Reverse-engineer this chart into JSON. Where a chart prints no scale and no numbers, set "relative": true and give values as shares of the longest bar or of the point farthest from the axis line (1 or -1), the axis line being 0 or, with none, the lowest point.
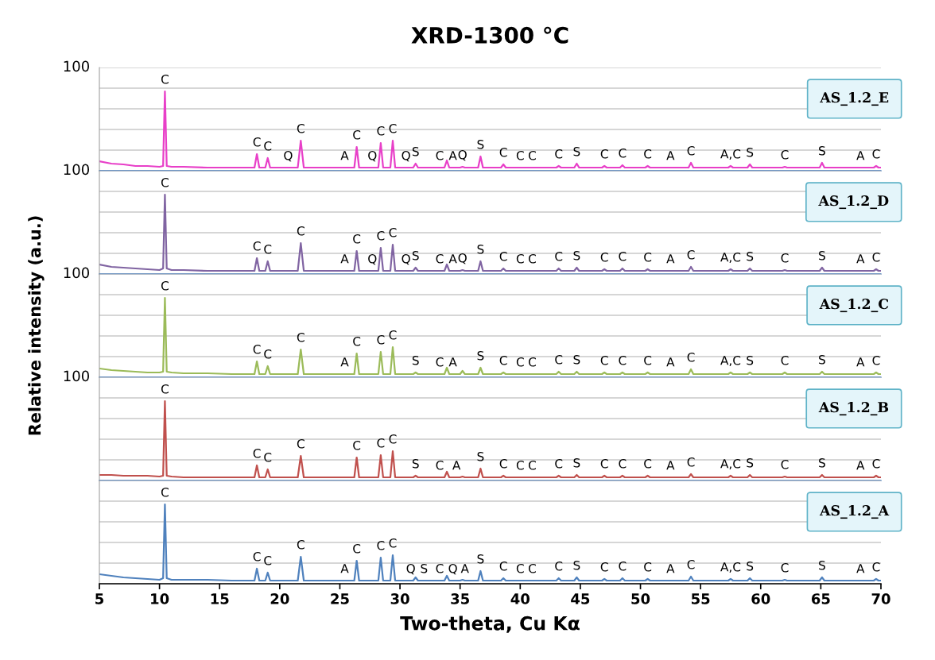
{
  "chart_data": [
    {
      "type": "line",
      "title": "XRD-1300 °C",
      "relative": true,
      "tick_labels": "y",
      "grid": "y",
      "legend": "top right",
      "xlim": [
        5,
        70
      ],
      "xticks": [
        5,
        10,
        15,
        20,
        25,
        30,
        35,
        40,
        45,
        50,
        55,
        60,
        65,
        70
      ],
      "x": [
        5,
        6,
        7,
        8,
        9,
        10,
        10.3,
        10.45,
        10.6,
        11,
        12,
        14,
        16,
        17.9,
        18.1,
        18.3,
        18.8,
        19.0,
        19.2,
        20.7,
        21.5,
        21.75,
        22.0,
        25.4,
        26.2,
        26.4,
        26.6,
        27.7,
        28.2,
        28.4,
        28.6,
        29.2,
        29.4,
        29.6,
        30.5,
        30.9,
        31.1,
        31.3,
        31.5,
        32.0,
        33.3,
        33.7,
        33.9,
        34.1,
        34.4,
        34.7,
        35.0,
        35.2,
        35.4,
        36.5,
        36.7,
        36.9,
        38.4,
        38.6,
        38.8,
        40.0,
        41.0,
        43.0,
        43.2,
        43.4,
        44.5,
        44.7,
        44.9,
        46.8,
        47.0,
        47.2,
        48.3,
        48.5,
        48.7,
        50.4,
        50.6,
        50.8,
        52.5,
        54.0,
        54.2,
        54.4,
        57.3,
        57.5,
        57.7,
        58.9,
        59.1,
        59.3,
        61.8,
        62.0,
        62.2,
        64.9,
        65.1,
        65.3,
        68.3,
        69.4,
        69.6,
        69.8,
        70
      ],
      "series": [
        {
          "name": "AS_1.2_E",
          "color": "#e83fc8",
          "values": [
            0.12,
            0.09,
            0.08,
            0.06,
            0.06,
            0.05,
            0.06,
            1,
            0.06,
            0.05,
            0.05,
            0.04,
            0.04,
            0.04,
            0.21,
            0.04,
            0.04,
            0.16,
            0.04,
            0.04,
            0.04,
            0.38,
            0.04,
            0.04,
            0.04,
            0.3,
            0.04,
            0.04,
            0.04,
            0.35,
            0.04,
            0.04,
            0.38,
            0.04,
            0.04,
            0.04,
            0.04,
            0.09,
            0.04,
            0.04,
            0.04,
            0.04,
            0.13,
            0.04,
            0.04,
            0.04,
            0.04,
            0.05,
            0.04,
            0.04,
            0.18,
            0.04,
            0.04,
            0.08,
            0.04,
            0.04,
            0.04,
            0.04,
            0.06,
            0.04,
            0.04,
            0.09,
            0.04,
            0.04,
            0.06,
            0.04,
            0.04,
            0.07,
            0.04,
            0.04,
            0.06,
            0.04,
            0.04,
            0.04,
            0.1,
            0.04,
            0.04,
            0.06,
            0.04,
            0.04,
            0.08,
            0.04,
            0.04,
            0.05,
            0.04,
            0.04,
            0.1,
            0.04,
            0.04,
            0.04,
            0.06,
            0.04,
            0.04
          ]
        }
      ],
      "annotations": [
        "100",
        {
          "text": "C",
          "x": 10.45,
          "y": 1
        },
        {
          "text": "C",
          "x": 18.1,
          "y": 0.21
        },
        {
          "text": "C",
          "x": 19.0,
          "y": 0.16
        },
        {
          "text": "Q",
          "x": 20.7,
          "y": 0.04
        },
        {
          "text": "C",
          "x": 21.75,
          "y": 0.38
        },
        {
          "text": "A",
          "x": 25.4,
          "y": 0.04
        },
        {
          "text": "C",
          "x": 26.4,
          "y": 0.3
        },
        {
          "text": "Q",
          "x": 27.7,
          "y": 0.04
        },
        {
          "text": "C",
          "x": 28.4,
          "y": 0.35
        },
        {
          "text": "C",
          "x": 29.4,
          "y": 0.38
        },
        {
          "text": "Q",
          "x": 30.5,
          "y": 0.04
        },
        {
          "text": "S",
          "x": 31.3,
          "y": 0.09
        },
        {
          "text": "C",
          "x": 33.3,
          "y": 0.04
        },
        {
          "text": "A",
          "x": 34.4,
          "y": 0.04
        },
        {
          "text": "Q",
          "x": 35.2,
          "y": 0.05
        },
        {
          "text": "S",
          "x": 36.7,
          "y": 0.18
        },
        {
          "text": "C",
          "x": 38.6,
          "y": 0.08
        },
        {
          "text": "C",
          "x": 40.0,
          "y": 0.04
        },
        {
          "text": "C",
          "x": 41.0,
          "y": 0.04
        },
        {
          "text": "C",
          "x": 43.2,
          "y": 0.06
        },
        {
          "text": "S",
          "x": 44.7,
          "y": 0.09
        },
        {
          "text": "C",
          "x": 47.0,
          "y": 0.06
        },
        {
          "text": "C",
          "x": 48.5,
          "y": 0.07
        },
        {
          "text": "C",
          "x": 50.6,
          "y": 0.06
        },
        {
          "text": "A",
          "x": 52.5,
          "y": 0.04
        },
        {
          "text": "C",
          "x": 54.2,
          "y": 0.1
        },
        {
          "text": "A,C",
          "x": 57.5,
          "y": 0.06
        },
        {
          "text": "S",
          "x": 59.1,
          "y": 0.08
        },
        {
          "text": "C",
          "x": 62.0,
          "y": 0.05
        },
        {
          "text": "S",
          "x": 65.1,
          "y": 0.1
        },
        {
          "text": "A",
          "x": 68.3,
          "y": 0.04
        },
        {
          "text": "C",
          "x": 69.6,
          "y": 0.06
        }
      ]
    },
    {
      "type": "line",
      "relative": true,
      "tick_labels": "y",
      "grid": "y",
      "legend": "top right",
      "xlim": [
        5,
        70
      ],
      "xticks": [
        5,
        10,
        15,
        20,
        25,
        30,
        35,
        40,
        45,
        50,
        55,
        60,
        65,
        70
      ],
      "x": [
        5,
        6,
        7,
        8,
        9,
        10,
        10.3,
        10.45,
        10.6,
        11,
        12,
        14,
        16,
        17.9,
        18.1,
        18.3,
        18.8,
        19.0,
        19.2,
        20.7,
        21.5,
        21.75,
        22.0,
        25.4,
        26.2,
        26.4,
        26.6,
        27.7,
        28.2,
        28.4,
        28.6,
        29.2,
        29.4,
        29.6,
        30.5,
        30.9,
        31.1,
        31.3,
        31.5,
        32.0,
        33.3,
        33.7,
        33.9,
        34.1,
        34.4,
        34.7,
        35.0,
        35.2,
        35.4,
        36.5,
        36.7,
        36.9,
        38.4,
        38.6,
        38.8,
        40.0,
        41.0,
        43.0,
        43.2,
        43.4,
        44.5,
        44.7,
        44.9,
        46.8,
        47.0,
        47.2,
        48.3,
        48.5,
        48.7,
        50.4,
        50.6,
        50.8,
        52.5,
        54.0,
        54.2,
        54.4,
        57.3,
        57.5,
        57.7,
        58.9,
        59.1,
        59.3,
        61.8,
        62.0,
        62.2,
        64.9,
        65.1,
        65.3,
        68.3,
        69.4,
        69.6,
        69.8,
        70
      ],
      "series": [
        {
          "name": "AS_1.2_D",
          "color": "#8064a2",
          "values": [
            0.12,
            0.09,
            0.08,
            0.07,
            0.06,
            0.05,
            0.07,
            1,
            0.07,
            0.05,
            0.05,
            0.04,
            0.04,
            0.04,
            0.2,
            0.04,
            0.04,
            0.16,
            0.04,
            0.04,
            0.04,
            0.39,
            0.04,
            0.04,
            0.04,
            0.29,
            0.04,
            0.04,
            0.04,
            0.33,
            0.04,
            0.04,
            0.37,
            0.04,
            0.04,
            0.04,
            0.04,
            0.08,
            0.04,
            0.04,
            0.04,
            0.04,
            0.12,
            0.04,
            0.04,
            0.04,
            0.04,
            0.05,
            0.04,
            0.04,
            0.16,
            0.04,
            0.04,
            0.07,
            0.04,
            0.04,
            0.04,
            0.04,
            0.07,
            0.04,
            0.04,
            0.08,
            0.04,
            0.04,
            0.06,
            0.04,
            0.04,
            0.07,
            0.04,
            0.04,
            0.06,
            0.04,
            0.04,
            0.04,
            0.09,
            0.04,
            0.04,
            0.06,
            0.04,
            0.04,
            0.07,
            0.04,
            0.04,
            0.05,
            0.04,
            0.04,
            0.08,
            0.04,
            0.04,
            0.04,
            0.06,
            0.04,
            0.04
          ]
        }
      ],
      "annotations": [
        "100",
        {
          "text": "C",
          "x": 10.45,
          "y": 1
        },
        {
          "text": "C",
          "x": 18.1,
          "y": 0.2
        },
        {
          "text": "C",
          "x": 19.0,
          "y": 0.16
        },
        {
          "text": "C",
          "x": 21.75,
          "y": 0.39
        },
        {
          "text": "A",
          "x": 25.4,
          "y": 0.04
        },
        {
          "text": "C",
          "x": 26.4,
          "y": 0.29
        },
        {
          "text": "Q",
          "x": 27.7,
          "y": 0.04
        },
        {
          "text": "C",
          "x": 28.4,
          "y": 0.33
        },
        {
          "text": "C",
          "x": 29.4,
          "y": 0.37
        },
        {
          "text": "Q",
          "x": 30.5,
          "y": 0.04
        },
        {
          "text": "S",
          "x": 31.3,
          "y": 0.08
        },
        {
          "text": "C",
          "x": 33.3,
          "y": 0.04
        },
        {
          "text": "A",
          "x": 34.4,
          "y": 0.04
        },
        {
          "text": "Q",
          "x": 35.2,
          "y": 0.05
        },
        {
          "text": "S",
          "x": 36.7,
          "y": 0.16
        },
        {
          "text": "C",
          "x": 38.6,
          "y": 0.07
        },
        {
          "text": "C",
          "x": 40.0,
          "y": 0.04
        },
        {
          "text": "C",
          "x": 41.0,
          "y": 0.04
        },
        {
          "text": "C",
          "x": 43.2,
          "y": 0.07
        },
        {
          "text": "S",
          "x": 44.7,
          "y": 0.08
        },
        {
          "text": "C",
          "x": 47.0,
          "y": 0.06
        },
        {
          "text": "C",
          "x": 48.5,
          "y": 0.07
        },
        {
          "text": "C",
          "x": 50.6,
          "y": 0.06
        },
        {
          "text": "A",
          "x": 52.5,
          "y": 0.04
        },
        {
          "text": "C",
          "x": 54.2,
          "y": 0.09
        },
        {
          "text": "A,C",
          "x": 57.5,
          "y": 0.06
        },
        {
          "text": "S",
          "x": 59.1,
          "y": 0.07
        },
        {
          "text": "C",
          "x": 62.0,
          "y": 0.05
        },
        {
          "text": "S",
          "x": 65.1,
          "y": 0.08
        },
        {
          "text": "A",
          "x": 68.3,
          "y": 0.04
        },
        {
          "text": "C",
          "x": 69.6,
          "y": 0.06
        }
      ]
    },
    {
      "type": "line",
      "ylabel": "Relative intensity (a.u.)",
      "relative": true,
      "tick_labels": "y",
      "grid": "y",
      "legend": "top right",
      "xlim": [
        5,
        70
      ],
      "xticks": [
        5,
        10,
        15,
        20,
        25,
        30,
        35,
        40,
        45,
        50,
        55,
        60,
        65,
        70
      ],
      "x": [
        5,
        6,
        7,
        8,
        9,
        10,
        10.3,
        10.45,
        10.6,
        11,
        12,
        14,
        16,
        17.9,
        18.1,
        18.3,
        18.8,
        19.0,
        19.2,
        20.7,
        21.5,
        21.75,
        22.0,
        25.4,
        26.2,
        26.4,
        26.6,
        27.7,
        28.2,
        28.4,
        28.6,
        29.2,
        29.4,
        29.6,
        30.5,
        30.9,
        31.1,
        31.3,
        31.5,
        32.0,
        33.3,
        33.7,
        33.9,
        34.1,
        34.4,
        34.7,
        35.0,
        35.2,
        35.4,
        36.5,
        36.7,
        36.9,
        38.4,
        38.6,
        38.8,
        40.0,
        41.0,
        43.0,
        43.2,
        43.4,
        44.5,
        44.7,
        44.9,
        46.8,
        47.0,
        47.2,
        48.3,
        48.5,
        48.7,
        50.4,
        50.6,
        50.8,
        52.5,
        54.0,
        54.2,
        54.4,
        57.3,
        57.5,
        57.7,
        58.9,
        59.1,
        59.3,
        61.8,
        62.0,
        62.2,
        64.9,
        65.1,
        65.3,
        68.3,
        69.4,
        69.6,
        69.8,
        70
      ],
      "series": [
        {
          "name": "AS_1.2_C",
          "color": "#9bbb59",
          "values": [
            0.11,
            0.09,
            0.08,
            0.07,
            0.06,
            0.06,
            0.07,
            1,
            0.07,
            0.06,
            0.05,
            0.05,
            0.04,
            0.04,
            0.2,
            0.04,
            0.04,
            0.14,
            0.04,
            0.04,
            0.04,
            0.35,
            0.04,
            0.04,
            0.04,
            0.3,
            0.04,
            0.04,
            0.04,
            0.32,
            0.04,
            0.04,
            0.38,
            0.04,
            0.04,
            0.04,
            0.04,
            0.06,
            0.04,
            0.04,
            0.04,
            0.04,
            0.12,
            0.04,
            0.04,
            0.04,
            0.04,
            0.08,
            0.04,
            0.04,
            0.12,
            0.04,
            0.04,
            0.06,
            0.04,
            0.04,
            0.04,
            0.04,
            0.07,
            0.04,
            0.04,
            0.07,
            0.04,
            0.04,
            0.06,
            0.04,
            0.04,
            0.06,
            0.04,
            0.04,
            0.06,
            0.04,
            0.04,
            0.04,
            0.1,
            0.04,
            0.04,
            0.06,
            0.04,
            0.04,
            0.06,
            0.04,
            0.04,
            0.06,
            0.04,
            0.04,
            0.07,
            0.04,
            0.04,
            0.04,
            0.06,
            0.04,
            0.04
          ]
        }
      ],
      "annotations": [
        "100",
        {
          "text": "C",
          "x": 10.45,
          "y": 1
        },
        {
          "text": "C",
          "x": 18.1,
          "y": 0.2
        },
        {
          "text": "C",
          "x": 19.0,
          "y": 0.14
        },
        {
          "text": "C",
          "x": 21.75,
          "y": 0.35
        },
        {
          "text": "A",
          "x": 25.4,
          "y": 0.04
        },
        {
          "text": "C",
          "x": 26.4,
          "y": 0.3
        },
        {
          "text": "C",
          "x": 28.4,
          "y": 0.32
        },
        {
          "text": "C",
          "x": 29.4,
          "y": 0.38
        },
        {
          "text": "S",
          "x": 31.3,
          "y": 0.06
        },
        {
          "text": "C",
          "x": 33.3,
          "y": 0.04
        },
        {
          "text": "A",
          "x": 34.4,
          "y": 0.04
        },
        {
          "text": "S",
          "x": 36.7,
          "y": 0.12
        },
        {
          "text": "C",
          "x": 38.6,
          "y": 0.06
        },
        {
          "text": "C",
          "x": 40.0,
          "y": 0.04
        },
        {
          "text": "C",
          "x": 41.0,
          "y": 0.04
        },
        {
          "text": "C",
          "x": 43.2,
          "y": 0.07
        },
        {
          "text": "S",
          "x": 44.7,
          "y": 0.07
        },
        {
          "text": "C",
          "x": 47.0,
          "y": 0.06
        },
        {
          "text": "C",
          "x": 48.5,
          "y": 0.06
        },
        {
          "text": "C",
          "x": 50.6,
          "y": 0.06
        },
        {
          "text": "A",
          "x": 52.5,
          "y": 0.04
        },
        {
          "text": "C",
          "x": 54.2,
          "y": 0.1
        },
        {
          "text": "A,C",
          "x": 57.5,
          "y": 0.06
        },
        {
          "text": "S",
          "x": 59.1,
          "y": 0.06
        },
        {
          "text": "C",
          "x": 62.0,
          "y": 0.06
        },
        {
          "text": "S",
          "x": 65.1,
          "y": 0.07
        },
        {
          "text": "A",
          "x": 68.3,
          "y": 0.04
        },
        {
          "text": "C",
          "x": 69.6,
          "y": 0.06
        }
      ]
    },
    {
      "type": "line",
      "relative": true,
      "tick_labels": "y",
      "grid": "y",
      "legend": "top right",
      "xlim": [
        5,
        70
      ],
      "xticks": [
        5,
        10,
        15,
        20,
        25,
        30,
        35,
        40,
        45,
        50,
        55,
        60,
        65,
        70
      ],
      "x": [
        5,
        6,
        7,
        8,
        9,
        10,
        10.3,
        10.45,
        10.6,
        11,
        12,
        14,
        16,
        17.9,
        18.1,
        18.3,
        18.8,
        19.0,
        19.2,
        20.7,
        21.5,
        21.75,
        22.0,
        25.4,
        26.2,
        26.4,
        26.6,
        27.7,
        28.2,
        28.4,
        28.6,
        29.2,
        29.4,
        29.6,
        30.5,
        30.9,
        31.1,
        31.3,
        31.5,
        32.0,
        33.3,
        33.7,
        33.9,
        34.1,
        34.4,
        34.7,
        35.0,
        35.2,
        35.4,
        36.5,
        36.7,
        36.9,
        38.4,
        38.6,
        38.8,
        40.0,
        41.0,
        43.0,
        43.2,
        43.4,
        44.5,
        44.7,
        44.9,
        46.8,
        47.0,
        47.2,
        48.3,
        48.5,
        48.7,
        50.4,
        50.6,
        50.8,
        52.5,
        54.0,
        54.2,
        54.4,
        57.3,
        57.5,
        57.7,
        58.9,
        59.1,
        59.3,
        61.8,
        62.0,
        62.2,
        64.9,
        65.1,
        65.3,
        68.3,
        69.4,
        69.6,
        69.8,
        70
      ],
      "series": [
        {
          "name": "AS_1.2_B",
          "color": "#c0504d",
          "values": [
            0.07,
            0.07,
            0.06,
            0.06,
            0.06,
            0.05,
            0.06,
            1,
            0.06,
            0.05,
            0.04,
            0.04,
            0.04,
            0.04,
            0.19,
            0.04,
            0.04,
            0.14,
            0.04,
            0.04,
            0.04,
            0.31,
            0.04,
            0.04,
            0.04,
            0.29,
            0.04,
            0.04,
            0.04,
            0.32,
            0.04,
            0.04,
            0.37,
            0.04,
            0.04,
            0.04,
            0.04,
            0.06,
            0.04,
            0.04,
            0.04,
            0.04,
            0.11,
            0.04,
            0.04,
            0.04,
            0.04,
            0.05,
            0.04,
            0.04,
            0.15,
            0.04,
            0.04,
            0.06,
            0.04,
            0.04,
            0.04,
            0.04,
            0.06,
            0.04,
            0.04,
            0.07,
            0.04,
            0.04,
            0.06,
            0.04,
            0.04,
            0.06,
            0.04,
            0.04,
            0.06,
            0.04,
            0.04,
            0.04,
            0.08,
            0.04,
            0.04,
            0.06,
            0.04,
            0.04,
            0.07,
            0.04,
            0.04,
            0.05,
            0.04,
            0.04,
            0.07,
            0.04,
            0.04,
            0.04,
            0.06,
            0.04,
            0.04
          ]
        }
      ],
      "annotations": [
        "100",
        {
          "text": "C",
          "x": 10.45,
          "y": 1
        },
        {
          "text": "C",
          "x": 18.1,
          "y": 0.19
        },
        {
          "text": "C",
          "x": 19.0,
          "y": 0.14
        },
        {
          "text": "C",
          "x": 21.75,
          "y": 0.31
        },
        {
          "text": "C",
          "x": 26.4,
          "y": 0.29
        },
        {
          "text": "C",
          "x": 28.4,
          "y": 0.32
        },
        {
          "text": "C",
          "x": 29.4,
          "y": 0.37
        },
        {
          "text": "S",
          "x": 31.3,
          "y": 0.06
        },
        {
          "text": "C",
          "x": 33.3,
          "y": 0.04
        },
        {
          "text": "A",
          "x": 34.7,
          "y": 0.04
        },
        {
          "text": "S",
          "x": 36.7,
          "y": 0.15
        },
        {
          "text": "C",
          "x": 38.6,
          "y": 0.06
        },
        {
          "text": "C",
          "x": 40.0,
          "y": 0.04
        },
        {
          "text": "C",
          "x": 41.0,
          "y": 0.04
        },
        {
          "text": "C",
          "x": 43.2,
          "y": 0.06
        },
        {
          "text": "S",
          "x": 44.7,
          "y": 0.07
        },
        {
          "text": "C",
          "x": 47.0,
          "y": 0.06
        },
        {
          "text": "C",
          "x": 48.5,
          "y": 0.06
        },
        {
          "text": "C",
          "x": 50.6,
          "y": 0.06
        },
        {
          "text": "A",
          "x": 52.5,
          "y": 0.04
        },
        {
          "text": "C",
          "x": 54.2,
          "y": 0.08
        },
        {
          "text": "A,C",
          "x": 57.5,
          "y": 0.06
        },
        {
          "text": "S",
          "x": 59.1,
          "y": 0.07
        },
        {
          "text": "C",
          "x": 62.0,
          "y": 0.05
        },
        {
          "text": "S",
          "x": 65.1,
          "y": 0.07
        },
        {
          "text": "A",
          "x": 68.3,
          "y": 0.04
        },
        {
          "text": "C",
          "x": 69.6,
          "y": 0.06
        }
      ]
    },
    {
      "type": "line",
      "xlabel": "Two-theta, Cu Kα",
      "relative": true,
      "grid": "y",
      "legend": "top right",
      "xlim": [
        5,
        70
      ],
      "xticks": [
        5,
        10,
        15,
        20,
        25,
        30,
        35,
        40,
        45,
        50,
        55,
        60,
        65,
        70
      ],
      "x": [
        5,
        6,
        7,
        8,
        9,
        10,
        10.3,
        10.45,
        10.6,
        11,
        12,
        14,
        16,
        17.9,
        18.1,
        18.3,
        18.8,
        19.0,
        19.2,
        20.7,
        21.5,
        21.75,
        22.0,
        25.4,
        26.2,
        26.4,
        26.6,
        27.7,
        28.2,
        28.4,
        28.6,
        29.2,
        29.4,
        29.6,
        30.5,
        30.9,
        31.1,
        31.3,
        31.5,
        32.0,
        33.3,
        33.7,
        33.9,
        34.1,
        34.4,
        34.7,
        35.0,
        35.2,
        35.4,
        36.5,
        36.7,
        36.9,
        38.4,
        38.6,
        38.8,
        40.0,
        41.0,
        43.0,
        43.2,
        43.4,
        44.5,
        44.7,
        44.9,
        46.8,
        47.0,
        47.2,
        48.3,
        48.5,
        48.7,
        50.4,
        50.6,
        50.8,
        52.5,
        54.0,
        54.2,
        54.4,
        57.3,
        57.5,
        57.7,
        58.9,
        59.1,
        59.3,
        61.8,
        62.0,
        62.2,
        64.9,
        65.1,
        65.3,
        68.3,
        69.4,
        69.6,
        69.8,
        70
      ],
      "series": [
        {
          "name": "AS_1.2_A",
          "color": "#4f81bd",
          "values": [
            0.12,
            0.1,
            0.08,
            0.07,
            0.06,
            0.05,
            0.07,
            1,
            0.07,
            0.05,
            0.05,
            0.05,
            0.04,
            0.04,
            0.19,
            0.04,
            0.04,
            0.14,
            0.04,
            0.04,
            0.04,
            0.34,
            0.04,
            0.04,
            0.04,
            0.29,
            0.04,
            0.04,
            0.04,
            0.33,
            0.04,
            0.04,
            0.36,
            0.04,
            0.04,
            0.04,
            0.04,
            0.08,
            0.04,
            0.04,
            0.04,
            0.04,
            0.1,
            0.04,
            0.04,
            0.04,
            0.04,
            0.05,
            0.04,
            0.04,
            0.16,
            0.04,
            0.04,
            0.07,
            0.04,
            0.04,
            0.04,
            0.04,
            0.07,
            0.04,
            0.04,
            0.08,
            0.04,
            0.04,
            0.06,
            0.04,
            0.04,
            0.07,
            0.04,
            0.04,
            0.06,
            0.04,
            0.04,
            0.04,
            0.09,
            0.04,
            0.04,
            0.06,
            0.04,
            0.04,
            0.07,
            0.04,
            0.04,
            0.05,
            0.04,
            0.04,
            0.08,
            0.04,
            0.04,
            0.04,
            0.06,
            0.04,
            0.04
          ]
        }
      ],
      "annotations": [
        {
          "text": "C",
          "x": 10.45,
          "y": 1
        },
        {
          "text": "C",
          "x": 18.1,
          "y": 0.19
        },
        {
          "text": "C",
          "x": 19.0,
          "y": 0.14
        },
        {
          "text": "C",
          "x": 21.75,
          "y": 0.34
        },
        {
          "text": "A",
          "x": 25.4,
          "y": 0.04
        },
        {
          "text": "C",
          "x": 26.4,
          "y": 0.29
        },
        {
          "text": "C",
          "x": 28.4,
          "y": 0.33
        },
        {
          "text": "C",
          "x": 29.4,
          "y": 0.36
        },
        {
          "text": "Q",
          "x": 30.9,
          "y": 0.04
        },
        {
          "text": "S",
          "x": 32.0,
          "y": 0.04
        },
        {
          "text": "C",
          "x": 33.3,
          "y": 0.04
        },
        {
          "text": "Q",
          "x": 34.4,
          "y": 0.04
        },
        {
          "text": "A",
          "x": 35.4,
          "y": 0.04
        },
        {
          "text": "S",
          "x": 36.7,
          "y": 0.16
        },
        {
          "text": "C",
          "x": 38.6,
          "y": 0.07
        },
        {
          "text": "C",
          "x": 40.0,
          "y": 0.04
        },
        {
          "text": "C",
          "x": 41.0,
          "y": 0.04
        },
        {
          "text": "C",
          "x": 43.2,
          "y": 0.07
        },
        {
          "text": "S",
          "x": 44.7,
          "y": 0.08
        },
        {
          "text": "C",
          "x": 47.0,
          "y": 0.06
        },
        {
          "text": "C",
          "x": 48.5,
          "y": 0.07
        },
        {
          "text": "C",
          "x": 50.6,
          "y": 0.06
        },
        {
          "text": "A",
          "x": 52.5,
          "y": 0.04
        },
        {
          "text": "C",
          "x": 54.2,
          "y": 0.09
        },
        {
          "text": "A,C",
          "x": 57.5,
          "y": 0.06
        },
        {
          "text": "S",
          "x": 59.1,
          "y": 0.07
        },
        {
          "text": "C",
          "x": 62.0,
          "y": 0.05
        },
        {
          "text": "S",
          "x": 65.1,
          "y": 0.08
        },
        {
          "text": "A",
          "x": 68.3,
          "y": 0.04
        },
        {
          "text": "C",
          "x": 69.6,
          "y": 0.06
        }
      ]
    }
  ]
}
